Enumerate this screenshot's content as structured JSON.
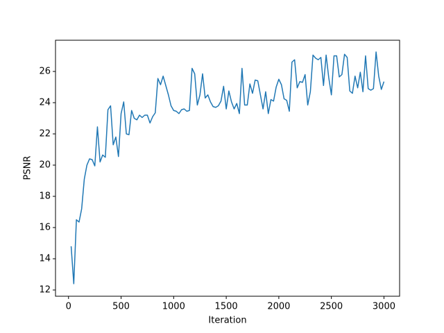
{
  "chart_data": {
    "type": "line",
    "xlabel": "Iteration",
    "ylabel": "PSNR",
    "color": "#1f77b4",
    "x": [
      25,
      50,
      75,
      100,
      125,
      150,
      175,
      200,
      225,
      250,
      275,
      300,
      325,
      350,
      375,
      400,
      425,
      450,
      475,
      500,
      525,
      550,
      575,
      600,
      625,
      650,
      675,
      700,
      725,
      750,
      775,
      800,
      825,
      850,
      875,
      900,
      925,
      950,
      975,
      1000,
      1025,
      1050,
      1075,
      1100,
      1125,
      1150,
      1175,
      1200,
      1225,
      1250,
      1275,
      1300,
      1325,
      1350,
      1375,
      1400,
      1425,
      1450,
      1475,
      1500,
      1525,
      1550,
      1575,
      1600,
      1625,
      1650,
      1675,
      1700,
      1725,
      1750,
      1775,
      1800,
      1825,
      1850,
      1875,
      1900,
      1925,
      1950,
      1975,
      2000,
      2025,
      2050,
      2075,
      2100,
      2125,
      2150,
      2175,
      2200,
      2225,
      2250,
      2275,
      2300,
      2325,
      2350,
      2375,
      2400,
      2425,
      2450,
      2475,
      2500,
      2525,
      2550,
      2575,
      2600,
      2625,
      2650,
      2675,
      2700,
      2725,
      2750,
      2775,
      2800,
      2825,
      2850,
      2875,
      2900,
      2925,
      2950,
      2975,
      3000
    ],
    "values": [
      14.8,
      12.4,
      16.5,
      16.35,
      17.2,
      19.1,
      20.0,
      20.4,
      20.35,
      19.95,
      22.45,
      20.2,
      20.65,
      20.5,
      23.55,
      23.8,
      21.3,
      21.8,
      20.55,
      23.3,
      24.05,
      22.0,
      21.95,
      23.5,
      23.0,
      22.9,
      23.2,
      23.05,
      23.2,
      23.2,
      22.7,
      23.1,
      23.35,
      25.55,
      25.15,
      25.7,
      25.1,
      24.5,
      23.8,
      23.5,
      23.45,
      23.3,
      23.55,
      23.6,
      23.45,
      23.5,
      26.2,
      25.85,
      23.85,
      24.5,
      25.85,
      24.3,
      24.5,
      24.05,
      23.75,
      23.7,
      23.8,
      24.1,
      25.05,
      23.6,
      24.75,
      24.05,
      23.6,
      23.95,
      23.3,
      26.2,
      23.85,
      23.85,
      25.2,
      24.6,
      25.45,
      25.4,
      24.5,
      23.6,
      24.7,
      23.3,
      24.2,
      24.1,
      25.0,
      25.5,
      25.15,
      24.25,
      24.15,
      23.45,
      26.6,
      26.75,
      24.95,
      25.35,
      25.3,
      25.8,
      23.85,
      24.7,
      27.05,
      26.85,
      26.75,
      26.9,
      25.1,
      27.05,
      25.6,
      24.5,
      27.0,
      27.0,
      25.65,
      25.8,
      27.1,
      26.9,
      24.75,
      24.6,
      25.7,
      24.95,
      25.95,
      24.7,
      27.0,
      24.9,
      24.8,
      24.9,
      27.25,
      25.7,
      24.85,
      25.35
    ],
    "xlim": [
      -123.75,
      3148.75
    ],
    "ylim": [
      11.6,
      28.0
    ],
    "xticks": [
      0,
      500,
      1000,
      1500,
      2000,
      2500,
      3000
    ],
    "yticks": [
      12,
      14,
      16,
      18,
      20,
      22,
      24,
      26
    ]
  }
}
